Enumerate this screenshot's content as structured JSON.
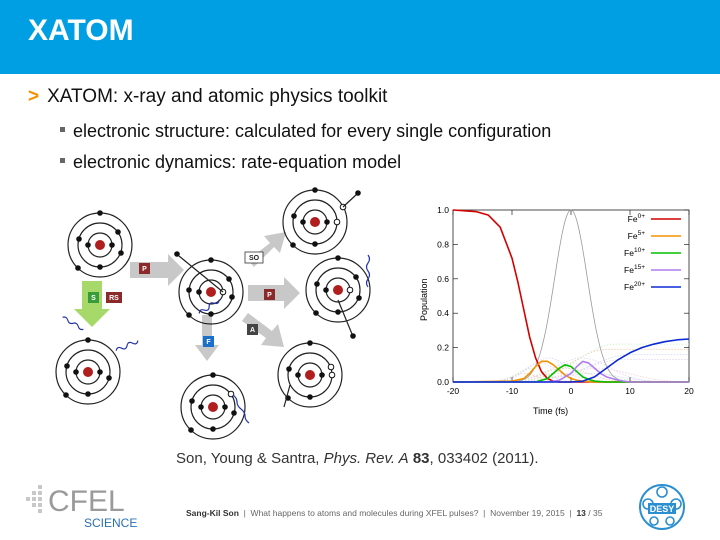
{
  "slide": {
    "title": "XATOM",
    "topline_marker": ">",
    "topline": "XATOM: x-ray and atomic physics toolkit",
    "bullets": [
      "electronic structure: calculated for every single configuration",
      "electronic dynamics: rate-equation model"
    ],
    "citation": {
      "authors": "Son, Young & Santra, ",
      "journal": "Phys. Rev. A",
      "volume": "83",
      "rest": ", 033402 (2011)."
    },
    "footer": {
      "author": "Sang-Kil Son",
      "talk": "What happens to atoms and molecules during XFEL pulses?",
      "date": "November 19, 2015",
      "page": "13",
      "total": "35"
    },
    "logos": {
      "left_main": "CFEL",
      "left_sub": "SCIENCE",
      "right": "DESY"
    }
  },
  "diagram": {
    "process_labels": [
      "P",
      "S",
      "RS",
      "SO",
      "P",
      "A",
      "F"
    ],
    "colors": {
      "P": "#8b2a2a",
      "S": "#3a9b3a",
      "RS": "#8b2a2a",
      "SO": "#ffffff",
      "A": "#444444",
      "F": "#1a6fc9",
      "nucleus": "#b01e1e",
      "arrow": "#bdbdbd",
      "green_arrow": "#a6d96a",
      "photon": "#2233aa"
    }
  },
  "chart_data": {
    "type": "line",
    "xlabel": "Time (fs)",
    "ylabel": "Population",
    "xlim": [
      -20,
      20
    ],
    "ylim": [
      0,
      1
    ],
    "xticks": [
      "-20",
      "-10",
      "0",
      "10",
      "20"
    ],
    "yticks": [
      "0.0",
      "0.2",
      "0.4",
      "0.6",
      "0.8",
      "1.0"
    ],
    "legend_position": "top-right",
    "series": [
      {
        "label_base": "Fe",
        "label_sup": "0+",
        "color": "#d40000",
        "x": [
          -20,
          -16,
          -14,
          -12,
          -10,
          -9,
          -8,
          -7,
          -6,
          -5,
          -4,
          -3,
          -2,
          0,
          20
        ],
        "y": [
          1.0,
          0.99,
          0.97,
          0.9,
          0.72,
          0.58,
          0.42,
          0.26,
          0.14,
          0.06,
          0.02,
          0.005,
          0.0,
          0.0,
          0.0
        ]
      },
      {
        "label_base": "Fe",
        "label_sup": "5+",
        "color": "#f39200",
        "x": [
          -20,
          -10,
          -8,
          -7,
          -6,
          -5,
          -4,
          -3,
          -2,
          -1,
          0,
          1,
          2,
          4,
          20
        ],
        "y": [
          0.0,
          0.005,
          0.02,
          0.05,
          0.09,
          0.12,
          0.12,
          0.1,
          0.07,
          0.04,
          0.02,
          0.01,
          0.005,
          0.0,
          0.0
        ]
      },
      {
        "label_base": "Fe",
        "label_sup": "10+",
        "color": "#00c000",
        "x": [
          -20,
          -6,
          -4,
          -3,
          -2,
          -1,
          0,
          1,
          2,
          3,
          4,
          6,
          20
        ],
        "y": [
          0.0,
          0.0,
          0.02,
          0.05,
          0.08,
          0.1,
          0.09,
          0.06,
          0.03,
          0.015,
          0.005,
          0.0,
          0.0
        ]
      },
      {
        "label_base": "Fe",
        "label_sup": "15+",
        "color": "#b27cf0",
        "x": [
          -20,
          -4,
          -2,
          0,
          1,
          2,
          3,
          4,
          5,
          6,
          8,
          10,
          20
        ],
        "y": [
          0.0,
          0.0,
          0.01,
          0.05,
          0.09,
          0.12,
          0.11,
          0.08,
          0.05,
          0.03,
          0.01,
          0.0,
          0.0
        ]
      },
      {
        "label_base": "Fe",
        "label_sup": "20+",
        "color": "#0a2ad6",
        "x": [
          -20,
          0,
          2,
          4,
          6,
          8,
          10,
          12,
          14,
          16,
          18,
          20
        ],
        "y": [
          0.0,
          0.0,
          0.005,
          0.03,
          0.08,
          0.13,
          0.17,
          0.2,
          0.22,
          0.235,
          0.245,
          0.25
        ]
      }
    ],
    "pulse": {
      "color": "#999999",
      "center": 0,
      "fwhm": 6.5,
      "peak": 1.0
    },
    "faint_lines_color": "#dddddd"
  }
}
